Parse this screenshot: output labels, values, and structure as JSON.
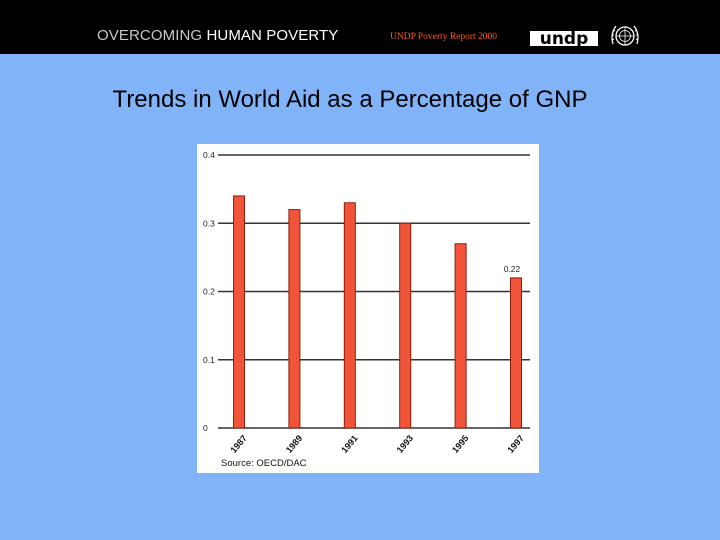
{
  "header": {
    "brand_prefix": "OVERCOMING",
    "brand_suffix": "HUMAN POVERTY",
    "report": "UNDP Poverty Report 2000",
    "logo_text": "undp"
  },
  "slide": {
    "title": "Trends in World Aid as a Percentage of GNP"
  },
  "colors": {
    "background": "#80b3f7",
    "bar": "#f2543a",
    "bar_outline": "#8a1f10"
  },
  "chart_data": {
    "type": "bar",
    "categories": [
      "1987",
      "1989",
      "1991",
      "1993",
      "1995",
      "1997"
    ],
    "values": [
      0.34,
      0.32,
      0.33,
      0.3,
      0.27,
      0.22
    ],
    "ylim": [
      0,
      0.4
    ],
    "y_ticks": [
      "0",
      "0.1",
      "0.2",
      "0.3",
      "0.4"
    ],
    "grid": true,
    "annotation": {
      "category": "1997",
      "text": "0.22"
    },
    "source": "Source: OECD/DAC"
  }
}
